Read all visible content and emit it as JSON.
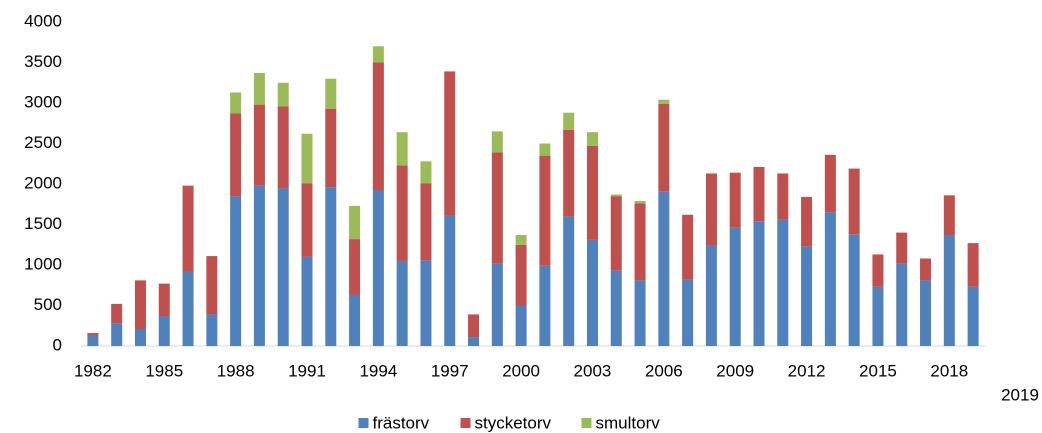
{
  "chart_data": {
    "type": "stacked_bar",
    "categories": [
      "1982",
      null,
      null,
      "1985",
      null,
      null,
      "1988",
      null,
      null,
      "1991",
      null,
      null,
      "1994",
      null,
      null,
      "1997",
      null,
      null,
      "2000",
      null,
      null,
      "2003",
      null,
      null,
      "2006",
      null,
      null,
      "2009",
      null,
      null,
      "2012",
      null,
      null,
      "2015",
      null,
      null,
      "2018",
      "2019"
    ],
    "series": [
      {
        "name": "frästorv",
        "color": "#4f81bd",
        "values": [
          130,
          280,
          210,
          370,
          920,
          390,
          1850,
          1980,
          1950,
          1100,
          1960,
          630,
          1920,
          1050,
          1060,
          1610,
          110,
          1020,
          500,
          990,
          1600,
          1310,
          930,
          810,
          1910,
          820,
          1240,
          1460,
          1540,
          1560,
          1230,
          1650,
          1380,
          730,
          1020,
          810,
          1370,
          730
        ]
      },
      {
        "name": "stycketorv",
        "color": "#c0504d",
        "values": [
          30,
          240,
          600,
          400,
          1060,
          720,
          1020,
          1000,
          1010,
          910,
          970,
          690,
          1580,
          1180,
          950,
          1780,
          280,
          1370,
          750,
          1360,
          1070,
          1160,
          920,
          950,
          1080,
          800,
          890,
          680,
          670,
          570,
          610,
          710,
          810,
          400,
          380,
          270,
          490,
          540
        ]
      },
      {
        "name": "smultorv",
        "color": "#9bbb59",
        "values": [
          0,
          0,
          0,
          0,
          0,
          0,
          260,
          390,
          290,
          610,
          370,
          410,
          200,
          410,
          270,
          0,
          0,
          260,
          120,
          150,
          210,
          170,
          20,
          30,
          50,
          0,
          0,
          0,
          0,
          0,
          0,
          0,
          0,
          0,
          0,
          0,
          0,
          0
        ]
      }
    ],
    "ylim": [
      0,
      4000
    ],
    "yticks": [
      0,
      500,
      1000,
      1500,
      2000,
      2500,
      3000,
      3500,
      4000
    ],
    "grid": false,
    "legend": "bottom"
  }
}
